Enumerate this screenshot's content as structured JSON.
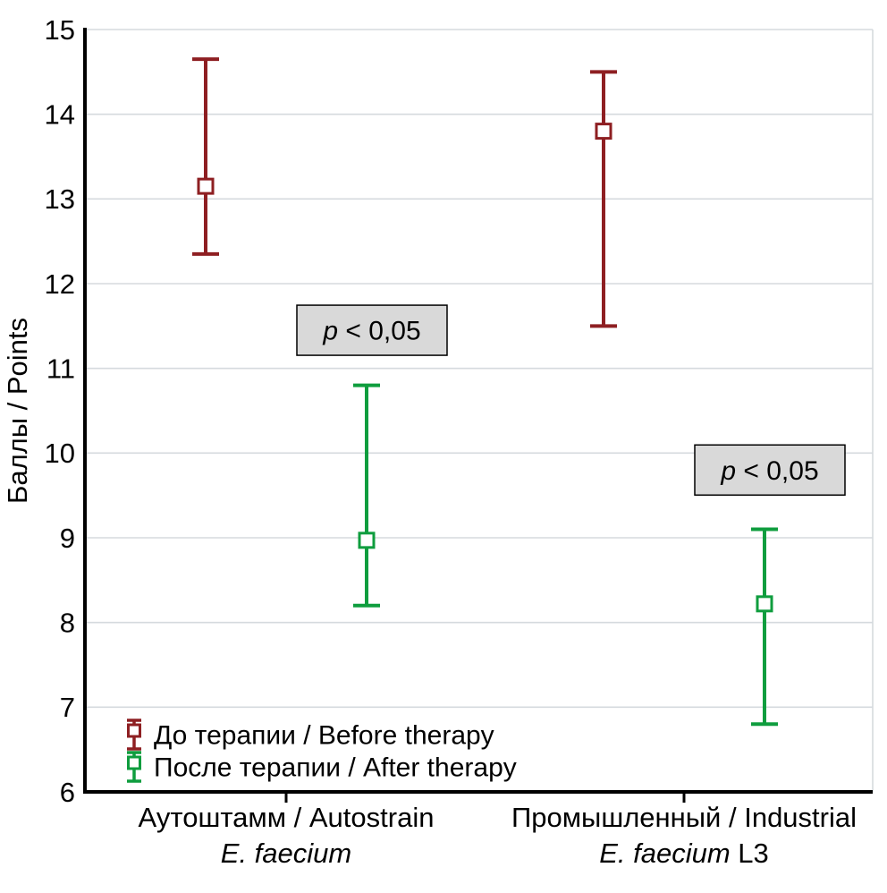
{
  "figure": {
    "background": "#ffffff"
  },
  "colors": {
    "grid": "#d5dade",
    "axis": "#000000",
    "before": "#8e1f22",
    "after": "#0f9d3e",
    "marker_fill": "#ffffff",
    "annotation_bg": "#d9d9d9",
    "annotation_border": "#000000"
  },
  "chart_data": {
    "type": "errorbar",
    "title": "",
    "xlabel": "",
    "ylabel": "Баллы / Points",
    "ylim": [
      6,
      15
    ],
    "yticks": [
      6,
      7,
      8,
      9,
      10,
      11,
      12,
      13,
      14,
      15
    ],
    "grid": "horizontal",
    "legend_position": "bottom-left-inside",
    "categories": [
      {
        "line1": "Аутоштамм / Autostrain",
        "line2_italic": "E. faecium",
        "line2_regular": ""
      },
      {
        "line1": "Промышленный / Industrial",
        "line2_italic": "E. faecium",
        "line2_regular": " L3"
      }
    ],
    "series": [
      {
        "name": "До терапии / Before therapy",
        "color_key": "before",
        "points": [
          {
            "center": 13.15,
            "low": 12.35,
            "high": 14.65
          },
          {
            "center": 13.8,
            "low": 11.5,
            "high": 14.5
          }
        ]
      },
      {
        "name": "После терапии / After therapy",
        "color_key": "after",
        "points": [
          {
            "center": 8.97,
            "low": 8.2,
            "high": 10.8
          },
          {
            "center": 8.22,
            "low": 6.8,
            "high": 9.1
          }
        ]
      }
    ],
    "annotations": [
      {
        "text": "p < 0,05",
        "anchor_group": 0,
        "anchor_series": 1,
        "y_value": 11.45
      },
      {
        "text": "p < 0,05",
        "anchor_group": 1,
        "anchor_series": 1,
        "y_value": 9.8
      }
    ]
  }
}
